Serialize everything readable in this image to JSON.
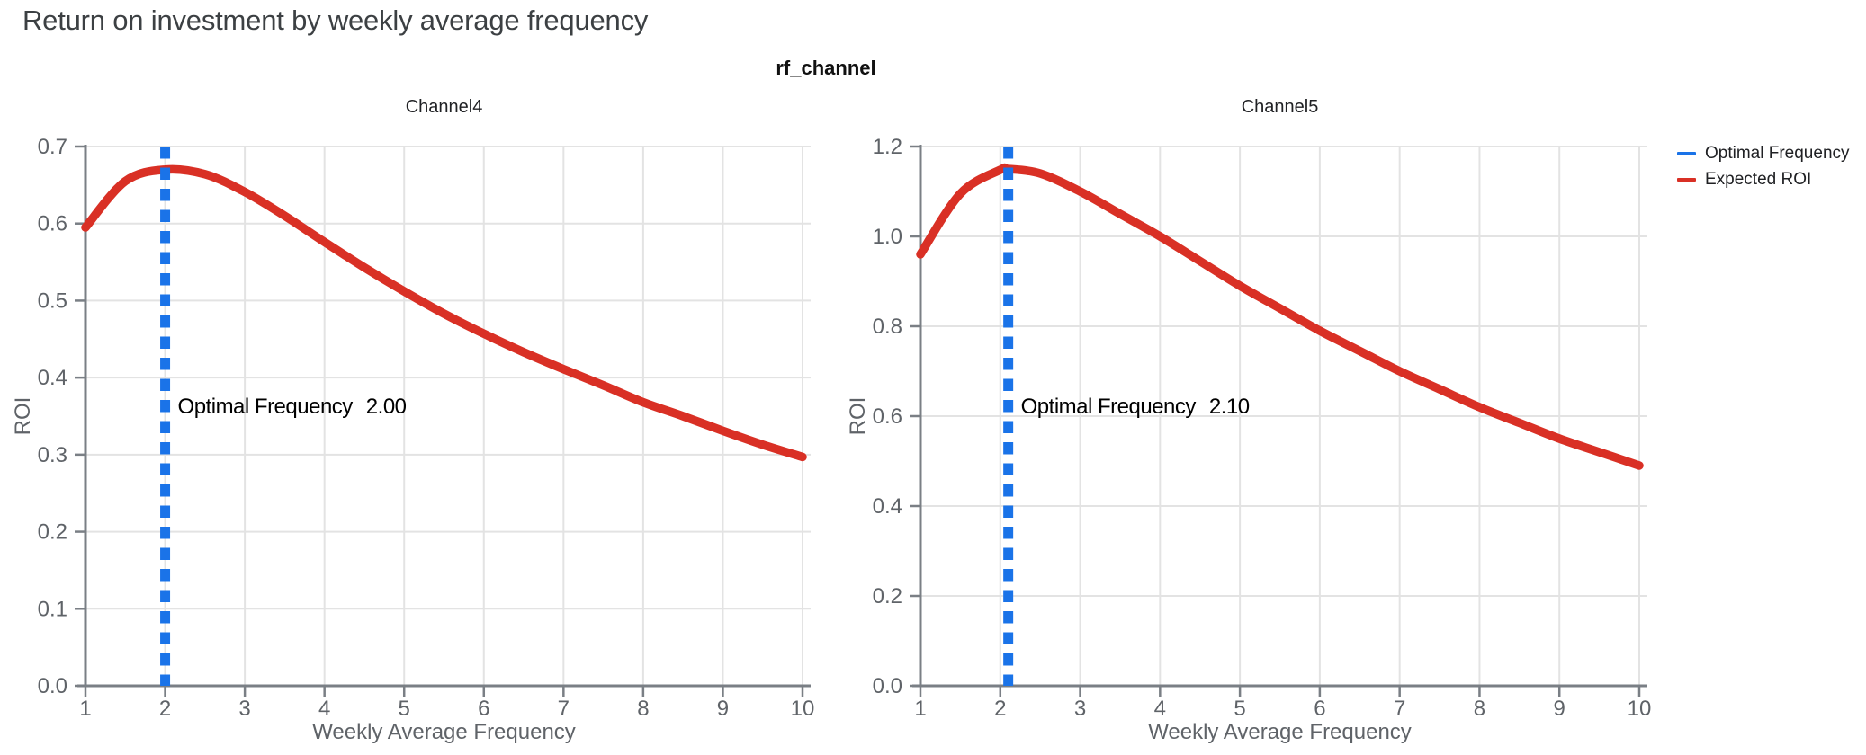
{
  "header": {
    "title": "Return on investment by weekly average frequency",
    "suptitle": "rf_channel"
  },
  "legend": {
    "items": [
      {
        "label": "Optimal Frequency",
        "color": "#1a73e8"
      },
      {
        "label": "Expected ROI",
        "color": "#d93025"
      }
    ]
  },
  "colors": {
    "background": "#ffffff",
    "grid": "#e3e3e3",
    "axis": "#7a7f85",
    "tick_label": "#5f6368",
    "title_text": "#3c4043",
    "subplot_title": "#202124",
    "annotation": "#000000"
  },
  "chart_data": [
    {
      "type": "line",
      "title": "Channel4",
      "xlabel": "Weekly Average Frequency",
      "ylabel": "ROI",
      "xlim": [
        1,
        10
      ],
      "ylim": [
        0,
        0.7
      ],
      "xticks": [
        1,
        2,
        3,
        4,
        5,
        6,
        7,
        8,
        9,
        10
      ],
      "yticks": [
        0,
        0.1,
        0.2,
        0.3,
        0.4,
        0.5,
        0.6,
        0.7
      ],
      "ytick_decimals": 1,
      "grid": true,
      "optimal_frequency": {
        "x": 2.0,
        "label": "Optimal Frequency",
        "value": "2.00"
      },
      "series": [
        {
          "name": "Expected ROI",
          "x": [
            1,
            1.5,
            2,
            2.5,
            3,
            3.5,
            4,
            4.5,
            5,
            5.5,
            6,
            6.5,
            7,
            7.5,
            8,
            8.5,
            9,
            9.5,
            10
          ],
          "y": [
            0.595,
            0.655,
            0.67,
            0.664,
            0.641,
            0.61,
            0.576,
            0.543,
            0.512,
            0.483,
            0.457,
            0.433,
            0.411,
            0.39,
            0.368,
            0.35,
            0.331,
            0.313,
            0.297
          ]
        }
      ]
    },
    {
      "type": "line",
      "title": "Channel5",
      "xlabel": "Weekly Average Frequency",
      "ylabel": "ROI",
      "xlim": [
        1,
        10
      ],
      "ylim": [
        0,
        1.2
      ],
      "xticks": [
        1,
        2,
        3,
        4,
        5,
        6,
        7,
        8,
        9,
        10
      ],
      "yticks": [
        0,
        0.2,
        0.4,
        0.6,
        0.8,
        1.0,
        1.2
      ],
      "ytick_decimals": 1,
      "grid": true,
      "optimal_frequency": {
        "x": 2.1,
        "label": "Optimal Frequency",
        "value": "2.10"
      },
      "series": [
        {
          "name": "Expected ROI",
          "x": [
            1,
            1.5,
            2,
            2.1,
            2.5,
            3,
            3.5,
            4,
            4.5,
            5,
            5.5,
            6,
            6.5,
            7,
            7.5,
            8,
            8.5,
            9,
            9.5,
            10
          ],
          "y": [
            0.96,
            1.095,
            1.148,
            1.15,
            1.14,
            1.1,
            1.05,
            1.0,
            0.945,
            0.89,
            0.84,
            0.79,
            0.745,
            0.7,
            0.66,
            0.62,
            0.585,
            0.55,
            0.52,
            0.49
          ]
        }
      ]
    }
  ]
}
